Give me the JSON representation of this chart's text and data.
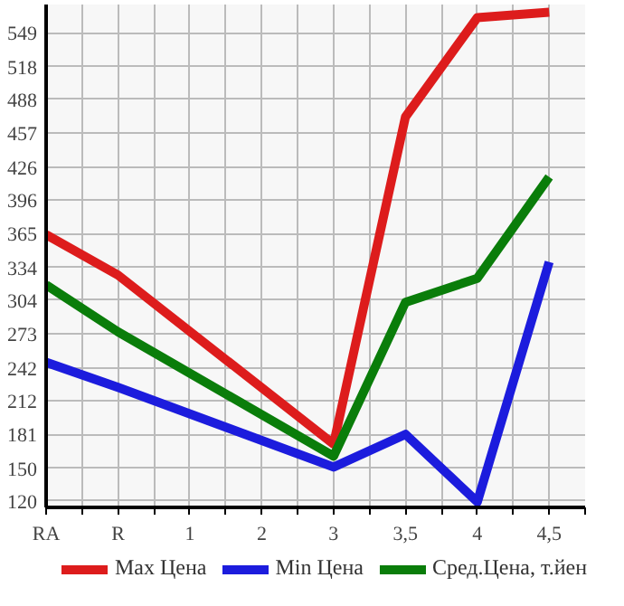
{
  "chart_data": {
    "type": "line",
    "categories": [
      "RA",
      "R",
      "1",
      "2",
      "3",
      "3,5",
      "4",
      "4,5"
    ],
    "series": [
      {
        "name": "Max Цена",
        "color": "#dd1c1c",
        "values": [
          364,
          327,
          null,
          null,
          172,
          472,
          563,
          568
        ]
      },
      {
        "name": "Min Цена",
        "color": "#1c1cdd",
        "values": [
          247,
          224,
          null,
          null,
          151,
          181,
          119,
          339
        ]
      },
      {
        "name": "Сред.Цена, т.йен",
        "color": "#0a7d0a",
        "values": [
          318,
          275,
          null,
          null,
          161,
          302,
          324,
          417
        ]
      }
    ],
    "ylim": [
      114,
      575
    ],
    "yticks": [
      120,
      150,
      181,
      212,
      242,
      273,
      304,
      334,
      365,
      396,
      426,
      457,
      488,
      518,
      549
    ],
    "grid": true,
    "legend": "bottom",
    "marker": "none",
    "line_style": "solid"
  }
}
